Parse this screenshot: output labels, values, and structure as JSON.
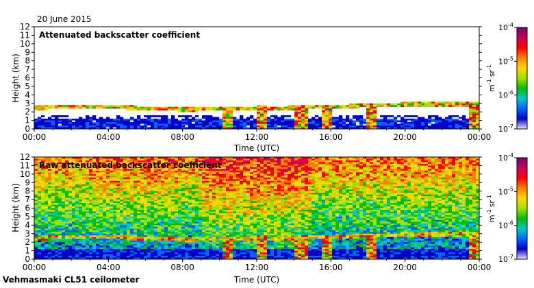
{
  "date_label": "20 June 2015",
  "footer_label": "Vehmasmaki CL51 ceilometer",
  "chart_data": [
    {
      "type": "heatmap",
      "title": "Attenuated backscatter coefficient",
      "xlabel": "Time (UTC)",
      "ylabel": "Height (km)",
      "x_ticks": [
        "00:00",
        "04:00",
        "08:00",
        "12:00",
        "16:00",
        "20:00",
        "00:00"
      ],
      "x_range_hours": [
        0,
        24
      ],
      "y_ticks": [
        0,
        1,
        2,
        3,
        4,
        5,
        6,
        7,
        8,
        9,
        10,
        11,
        12
      ],
      "ylim": [
        0,
        12
      ],
      "colorbar": {
        "scale": "log",
        "range": [
          1e-07,
          0.0001
        ],
        "tick_labels": [
          "10",
          "10",
          "10",
          "10"
        ],
        "tick_exponents": [
          "-4",
          "-5",
          "-6",
          "-7"
        ],
        "unit_main": "m",
        "unit_exp1": "-1",
        "unit_mid": "sr",
        "unit_exp2": "-1",
        "colors": [
          "#6a0a6a",
          "#c8005a",
          "#ff0000",
          "#ff8000",
          "#ffd700",
          "#a0e000",
          "#00c000",
          "#00c8c8",
          "#0064ff",
          "#0000c8",
          "#e8e8ff"
        ]
      },
      "features": {
        "cloud_base_layer_km": [
          [
            0,
            2.5
          ],
          [
            4,
            2.6
          ],
          [
            8,
            2.3
          ],
          [
            12,
            2.4
          ],
          [
            16,
            2.6
          ],
          [
            20,
            2.9
          ],
          [
            24,
            2.9
          ]
        ],
        "boundary_layer_top_km": 1.2,
        "rain_events_hours": [
          10.5,
          12.2,
          14.4,
          15.7,
          18.2,
          23.7
        ]
      }
    },
    {
      "type": "heatmap",
      "title": "Raw attenuated backscatter coefficient",
      "xlabel": "Time (UTC)",
      "ylabel": "Height (km)",
      "x_ticks": [
        "00:00",
        "04:00",
        "08:00",
        "12:00",
        "16:00",
        "20:00",
        "00:00"
      ],
      "x_range_hours": [
        0,
        24
      ],
      "y_ticks": [
        0,
        1,
        2,
        3,
        4,
        5,
        6,
        7,
        8,
        9,
        10,
        11,
        12
      ],
      "ylim": [
        0,
        12
      ],
      "colorbar": {
        "scale": "log",
        "range": [
          1e-07,
          0.0001
        ],
        "tick_labels": [
          "10",
          "10",
          "10",
          "10"
        ],
        "tick_exponents": [
          "-4",
          "-5",
          "-6",
          "-7"
        ],
        "unit_main": "m",
        "unit_exp1": "-1",
        "unit_mid": "sr",
        "unit_exp2": "-1",
        "colors": [
          "#6a0a6a",
          "#c8005a",
          "#ff0000",
          "#ff8000",
          "#ffd700",
          "#a0e000",
          "#00c000",
          "#00c8c8",
          "#0064ff",
          "#0000c8",
          "#e8e8ff"
        ]
      },
      "features": {
        "cloud_base_layer_km": [
          [
            0,
            2.5
          ],
          [
            4,
            2.6
          ],
          [
            8,
            2.3
          ],
          [
            12,
            2.4
          ],
          [
            16,
            2.6
          ],
          [
            20,
            2.9
          ],
          [
            24,
            2.9
          ]
        ],
        "boundary_layer_top_km": 1.2,
        "rain_events_hours": [
          10.5,
          12.2,
          14.4,
          15.7,
          18.2,
          23.7
        ]
      }
    }
  ]
}
